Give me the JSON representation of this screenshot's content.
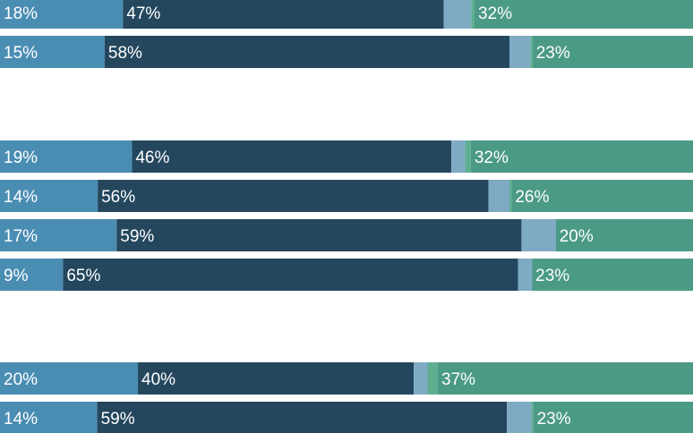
{
  "chart_data": {
    "type": "bar",
    "orientation": "horizontal",
    "stacked": true,
    "colors": {
      "segment_1": "#4a8db3",
      "segment_2": "#24475e",
      "segment_3": "#7eaac4",
      "segment_4": "#5eae92",
      "segment_5": "#4b9a85",
      "label": "#ffffff"
    },
    "groups": [
      {
        "rows": [
          {
            "values": [
              18,
              47,
              4,
              0.5,
              32
            ],
            "labels": [
              "18%",
              "47%",
              "",
              "",
              "32%"
            ]
          },
          {
            "values": [
              15,
              58,
              3,
              0.3,
              23
            ],
            "labels": [
              "15%",
              "58%",
              "",
              "",
              "23%"
            ]
          }
        ]
      },
      {
        "rows": [
          {
            "values": [
              19,
              46,
              2,
              0.8,
              32
            ],
            "labels": [
              "19%",
              "46%",
              "",
              "",
              "32%"
            ]
          },
          {
            "values": [
              14,
              56,
              3,
              0.3,
              26
            ],
            "labels": [
              "14%",
              "56%",
              "",
              "",
              "26%"
            ]
          },
          {
            "values": [
              17,
              59,
              5,
              0,
              20
            ],
            "labels": [
              "17%",
              "59%",
              "",
              "",
              "20%"
            ]
          },
          {
            "values": [
              9,
              65,
              2,
              0,
              23
            ],
            "labels": [
              "9%",
              "65%",
              "",
              "",
              "23%"
            ]
          }
        ]
      },
      {
        "rows": [
          {
            "values": [
              20,
              40,
              2,
              1.5,
              37
            ],
            "labels": [
              "20%",
              "40%",
              "",
              "",
              "37%"
            ]
          },
          {
            "values": [
              14,
              59,
              3.5,
              0.3,
              23
            ],
            "labels": [
              "14%",
              "59%",
              "",
              "",
              "23%"
            ]
          }
        ]
      }
    ]
  }
}
